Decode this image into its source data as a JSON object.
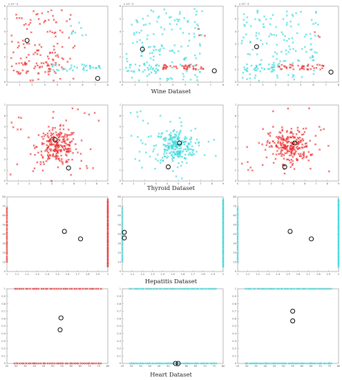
{
  "datasets": [
    "Wine Dataset",
    "Thyroid Dataset",
    "Hepatitis Dataset",
    "Heart Dataset"
  ],
  "colors": {
    "class_a": "#ee3030",
    "class_b": "#3ad8dc",
    "center": "#111111",
    "axis": "#999999"
  },
  "chart_data": [
    {
      "type": "scatter",
      "dataset": "Wine Dataset",
      "panel": 1,
      "xlim": [
        0,
        8
      ],
      "ylim": [
        0,
        6
      ],
      "axis_exponent": "x 10^-3",
      "xticks": [
        0,
        1,
        2,
        3,
        4,
        5,
        6,
        7,
        8
      ],
      "yticks": [
        0,
        1,
        2,
        3,
        4,
        5,
        6
      ],
      "clusters": [
        {
          "color": "class_a",
          "kind": "uniform",
          "n": 110,
          "x": [
            0.3,
            5.4
          ],
          "y": [
            0.1,
            5.7
          ]
        },
        {
          "color": "class_a",
          "kind": "uniform",
          "n": 35,
          "x": [
            0.3,
            4.2
          ],
          "y": [
            0.6,
            1.6
          ]
        },
        {
          "color": "class_b",
          "kind": "uniform",
          "n": 35,
          "x": [
            3.5,
            7.4
          ],
          "y": [
            0.9,
            1.4
          ]
        },
        {
          "color": "class_b",
          "kind": "uniform",
          "n": 8,
          "x": [
            5.0,
            6.5
          ],
          "y": [
            3.6,
            4.8
          ]
        }
      ],
      "centers": [
        [
          1.6,
          3.3
        ],
        [
          7.2,
          0.3
        ]
      ]
    },
    {
      "type": "scatter",
      "dataset": "Wine Dataset",
      "panel": 2,
      "xlim": [
        0,
        8
      ],
      "ylim": [
        0,
        6
      ],
      "axis_exponent": "x 10^-3",
      "xticks": [
        0,
        1,
        2,
        3,
        4,
        5,
        6,
        7,
        8
      ],
      "yticks": [
        0,
        1,
        2,
        3,
        4,
        5,
        6
      ],
      "clusters": [
        {
          "color": "class_b",
          "kind": "uniform",
          "n": 140,
          "x": [
            0.3,
            6.4
          ],
          "y": [
            0.1,
            5.8
          ]
        },
        {
          "color": "class_b",
          "kind": "uniform",
          "n": 30,
          "x": [
            0.3,
            3.0
          ],
          "y": [
            0.8,
            1.5
          ]
        },
        {
          "color": "class_a",
          "kind": "uniform",
          "n": 40,
          "x": [
            3.2,
            6.8
          ],
          "y": [
            1.0,
            1.4
          ]
        },
        {
          "color": "class_a",
          "kind": "uniform",
          "n": 3,
          "x": [
            6.0,
            6.6
          ],
          "y": [
            3.4,
            4.4
          ]
        }
      ],
      "centers": [
        [
          1.6,
          2.6
        ],
        [
          7.3,
          0.9
        ]
      ]
    },
    {
      "type": "scatter",
      "dataset": "Wine Dataset",
      "panel": 3,
      "xlim": [
        0,
        8
      ],
      "ylim": [
        0,
        6
      ],
      "axis_exponent": "x 10^-3",
      "xticks": [
        0,
        1,
        2,
        3,
        4,
        5,
        6,
        7,
        8
      ],
      "yticks": [
        0,
        1,
        2,
        3,
        4,
        5,
        6
      ],
      "clusters": [
        {
          "color": "class_b",
          "kind": "uniform",
          "n": 140,
          "x": [
            0.3,
            6.4
          ],
          "y": [
            0.1,
            5.8
          ]
        },
        {
          "color": "class_b",
          "kind": "uniform",
          "n": 30,
          "x": [
            0.3,
            3.0
          ],
          "y": [
            0.8,
            1.5
          ]
        },
        {
          "color": "class_a",
          "kind": "uniform",
          "n": 40,
          "x": [
            3.2,
            7.0
          ],
          "y": [
            1.0,
            1.4
          ]
        },
        {
          "color": "class_a",
          "kind": "uniform",
          "n": 3,
          "x": [
            6.0,
            6.6
          ],
          "y": [
            3.4,
            4.4
          ]
        }
      ],
      "centers": [
        [
          1.5,
          2.8
        ],
        [
          7.4,
          0.8
        ]
      ]
    },
    {
      "type": "scatter",
      "dataset": "Thyroid Dataset",
      "panel": 1,
      "xlim": [
        0,
        9
      ],
      "ylim": [
        0,
        7
      ],
      "xticks": [
        0,
        1,
        2,
        3,
        4,
        5,
        6,
        7,
        8,
        9
      ],
      "yticks": [
        0,
        1,
        2,
        3,
        4,
        5,
        6,
        7
      ],
      "clusters": [
        {
          "color": "class_a",
          "kind": "gauss",
          "n": 230,
          "cx": 4.5,
          "cy": 3.2,
          "sx": 0.9,
          "sy": 0.8
        },
        {
          "color": "class_a",
          "kind": "uniform",
          "n": 30,
          "x": [
            0.3,
            8.6
          ],
          "y": [
            0.2,
            6.7
          ]
        }
      ],
      "centers": [
        [
          4.3,
          3.8
        ],
        [
          5.5,
          1.2
        ]
      ]
    },
    {
      "type": "scatter",
      "dataset": "Thyroid Dataset",
      "panel": 2,
      "xlim": [
        0,
        9
      ],
      "ylim": [
        0,
        7
      ],
      "xticks": [
        0,
        1,
        2,
        3,
        4,
        5,
        6,
        7,
        8,
        9
      ],
      "yticks": [
        0,
        1,
        2,
        3,
        4,
        5,
        6,
        7
      ],
      "clusters": [
        {
          "color": "class_b",
          "kind": "gauss",
          "n": 230,
          "cx": 4.7,
          "cy": 3.2,
          "sx": 0.9,
          "sy": 0.8
        },
        {
          "color": "class_b",
          "kind": "uniform",
          "n": 30,
          "x": [
            0.3,
            8.6
          ],
          "y": [
            0.2,
            6.7
          ]
        }
      ],
      "centers": [
        [
          5.1,
          3.5
        ],
        [
          4.1,
          1.3
        ]
      ]
    },
    {
      "type": "scatter",
      "dataset": "Thyroid Dataset",
      "panel": 3,
      "xlim": [
        0,
        9
      ],
      "ylim": [
        0,
        7
      ],
      "xticks": [
        0,
        1,
        2,
        3,
        4,
        5,
        6,
        7,
        8,
        9
      ],
      "yticks": [
        0,
        1,
        2,
        3,
        4,
        5,
        6,
        7
      ],
      "clusters": [
        {
          "color": "class_a",
          "kind": "gauss",
          "n": 230,
          "cx": 4.6,
          "cy": 3.2,
          "sx": 0.9,
          "sy": 0.8
        },
        {
          "color": "class_a",
          "kind": "uniform",
          "n": 30,
          "x": [
            0.3,
            8.6
          ],
          "y": [
            0.2,
            6.7
          ]
        }
      ],
      "centers": [
        [
          5.1,
          3.5
        ],
        [
          4.2,
          1.3
        ]
      ]
    },
    {
      "type": "scatter",
      "dataset": "Hepatitis Dataset",
      "panel": 1,
      "xlim": [
        1,
        2
      ],
      "ylim": [
        0,
        80
      ],
      "xticks": [
        1,
        1.1,
        1.2,
        1.3,
        1.4,
        1.5,
        1.6,
        1.7,
        1.8,
        1.9,
        2
      ],
      "yticks": [
        0,
        10,
        20,
        30,
        40,
        50,
        60,
        70,
        80
      ],
      "clusters": [
        {
          "color": "class_a",
          "kind": "column",
          "n": 30,
          "x": 1.0,
          "y": [
            10,
            70
          ]
        },
        {
          "color": "class_a",
          "kind": "column",
          "n": 70,
          "x": 2.0,
          "y": [
            5,
            78
          ]
        }
      ],
      "centers": [
        [
          1.57,
          43
        ],
        [
          1.73,
          35
        ]
      ]
    },
    {
      "type": "scatter",
      "dataset": "Hepatitis Dataset",
      "panel": 2,
      "xlim": [
        1,
        2
      ],
      "ylim": [
        0,
        80
      ],
      "xticks": [
        1,
        1.1,
        1.2,
        1.3,
        1.4,
        1.5,
        1.6,
        1.7,
        1.8,
        1.9,
        2
      ],
      "yticks": [
        0,
        10,
        20,
        30,
        40,
        50,
        60,
        70,
        80
      ],
      "clusters": [
        {
          "color": "class_b",
          "kind": "column",
          "n": 30,
          "x": 1.0,
          "y": [
            10,
            70
          ]
        },
        {
          "color": "class_b",
          "kind": "column",
          "n": 70,
          "x": 2.0,
          "y": [
            5,
            78
          ]
        }
      ],
      "centers": [
        [
          1.02,
          42
        ],
        [
          1.02,
          36
        ]
      ]
    },
    {
      "type": "scatter",
      "dataset": "Hepatitis Dataset",
      "panel": 3,
      "xlim": [
        1,
        2
      ],
      "ylim": [
        0,
        80
      ],
      "xticks": [
        1,
        1.1,
        1.2,
        1.3,
        1.4,
        1.5,
        1.6,
        1.7,
        1.8,
        1.9,
        2
      ],
      "yticks": [
        0,
        10,
        20,
        30,
        40,
        50,
        60,
        70,
        80
      ],
      "clusters": [
        {
          "color": "class_b",
          "kind": "column",
          "n": 30,
          "x": 1.0,
          "y": [
            10,
            70
          ]
        },
        {
          "color": "class_b",
          "kind": "column",
          "n": 70,
          "x": 2.0,
          "y": [
            5,
            78
          ]
        }
      ],
      "centers": [
        [
          1.52,
          43
        ],
        [
          1.73,
          35
        ]
      ]
    },
    {
      "type": "scatter",
      "dataset": "Heart Dataset",
      "panel": 1,
      "xlim": [
        25,
        80
      ],
      "ylim": [
        0,
        1
      ],
      "xticks": [
        25,
        30,
        35,
        40,
        45,
        50,
        55,
        60,
        65,
        70,
        75,
        80
      ],
      "yticks": [
        0,
        0.1,
        0.2,
        0.3,
        0.4,
        0.5,
        0.6,
        0.7,
        0.8,
        0.9,
        1
      ],
      "clusters": [
        {
          "color": "class_a",
          "kind": "row",
          "n": 40,
          "x": [
            29,
            77
          ],
          "y": 1.0
        },
        {
          "color": "class_a",
          "kind": "row",
          "n": 40,
          "x": [
            29,
            77
          ],
          "y": 0.0
        }
      ],
      "centers": [
        [
          54.5,
          0.61
        ],
        [
          54,
          0.45
        ]
      ]
    },
    {
      "type": "scatter",
      "dataset": "Heart Dataset",
      "panel": 2,
      "xlim": [
        25,
        80
      ],
      "ylim": [
        0,
        1
      ],
      "xticks": [
        25,
        30,
        35,
        40,
        45,
        50,
        55,
        60,
        65,
        70,
        75,
        80
      ],
      "yticks": [
        0,
        0.1,
        0.2,
        0.3,
        0.4,
        0.5,
        0.6,
        0.7,
        0.8,
        0.9,
        1
      ],
      "clusters": [
        {
          "color": "class_b",
          "kind": "row",
          "n": 45,
          "x": [
            29,
            77
          ],
          "y": 1.0
        },
        {
          "color": "class_b",
          "kind": "row",
          "n": 45,
          "x": [
            29,
            77
          ],
          "y": 0.0
        }
      ],
      "centers": [
        [
          54,
          0.0
        ],
        [
          55.5,
          0.0
        ]
      ]
    },
    {
      "type": "scatter",
      "dataset": "Heart Dataset",
      "panel": 3,
      "xlim": [
        25,
        80
      ],
      "ylim": [
        0,
        1
      ],
      "xticks": [
        25,
        30,
        35,
        40,
        45,
        50,
        55,
        60,
        65,
        70,
        75,
        80
      ],
      "yticks": [
        0,
        0.1,
        0.2,
        0.3,
        0.4,
        0.5,
        0.6,
        0.7,
        0.8,
        0.9,
        1
      ],
      "clusters": [
        {
          "color": "class_b",
          "kind": "row",
          "n": 45,
          "x": [
            29,
            77
          ],
          "y": 1.0
        },
        {
          "color": "class_b",
          "kind": "row",
          "n": 45,
          "x": [
            29,
            77
          ],
          "y": 0.0
        }
      ],
      "centers": [
        [
          55,
          0.7
        ],
        [
          55,
          0.57
        ]
      ]
    }
  ]
}
